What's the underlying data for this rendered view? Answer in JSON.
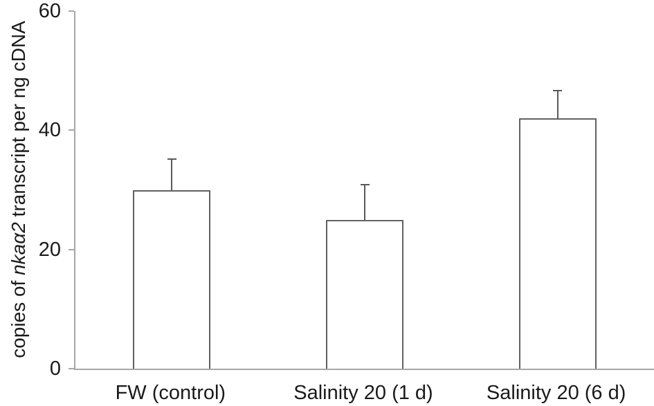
{
  "chart_data": {
    "type": "bar",
    "title": "",
    "xlabel": "",
    "ylabel": "copies of nkaα2 transcript per ng cDNA",
    "ylabel_parts": [
      {
        "text": "copies of ",
        "italic": false
      },
      {
        "text": "nkaα2",
        "italic": true
      },
      {
        "text": " transcript per ng cDNA",
        "italic": false
      }
    ],
    "categories": [
      "FW (control)",
      "Salinity 20 (1 d)",
      "Salinity 20 (6 d)"
    ],
    "series": [
      {
        "name": "copies of nkaα2 transcript per ng cDNA",
        "values": [
          30,
          25,
          42
        ],
        "errors_up": [
          5.3,
          6.0,
          4.8
        ]
      }
    ],
    "ylim": [
      0,
      60
    ],
    "yticks": [
      0,
      20,
      40,
      60
    ],
    "grid": false,
    "legend": null,
    "colors": {
      "background": "#ffffff",
      "bar_fill": "#ffffff",
      "bar_border": "#616161",
      "error_bar": "#595959",
      "axis_line": "#a6a6a6",
      "text": "#1a1a1a"
    }
  }
}
